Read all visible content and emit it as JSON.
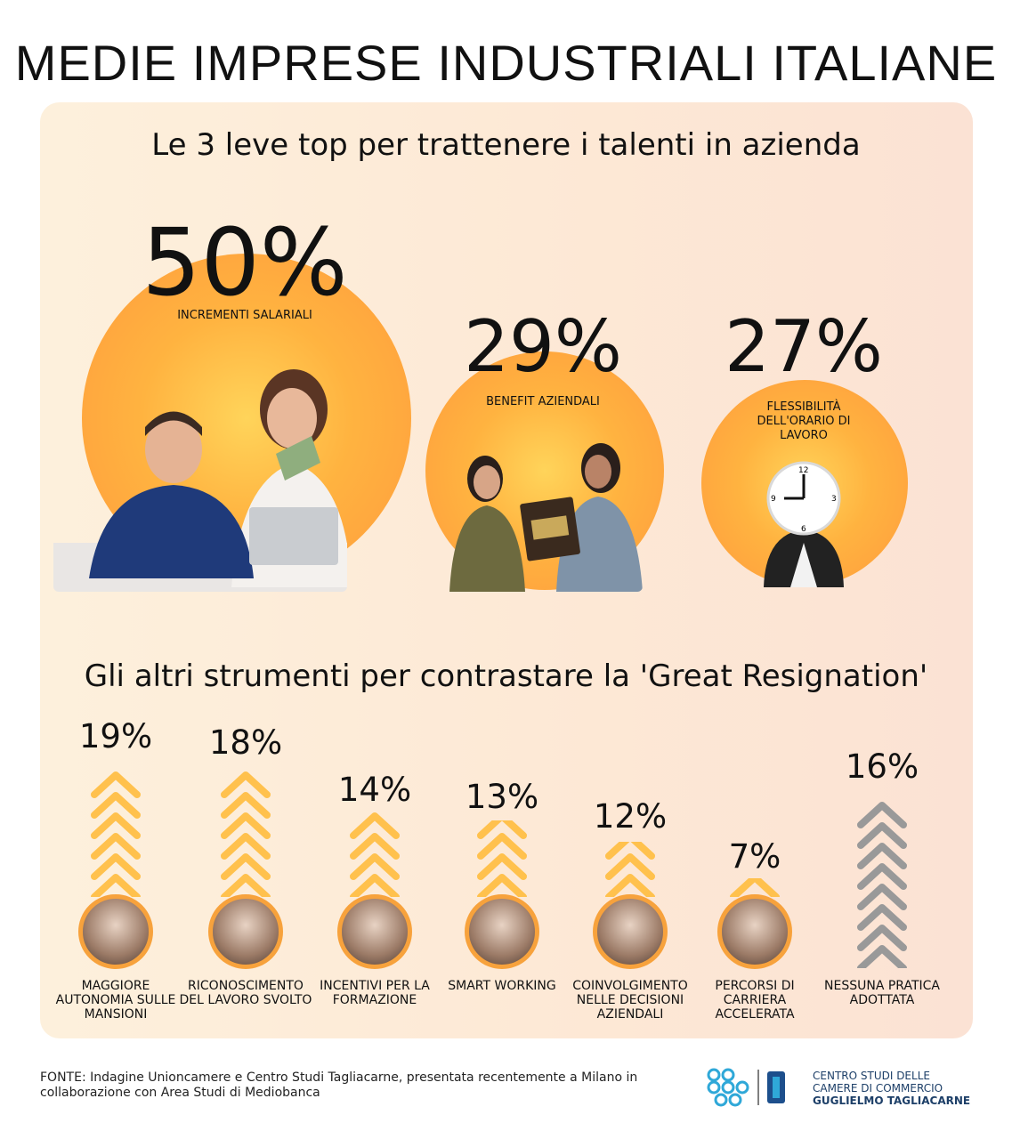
{
  "title": "MEDIE IMPRESE INDUSTRIALI ITALIANE",
  "section1_title": "Le 3 leve top per trattenere i talenti in azienda",
  "section2_title": "Gli altri strumenti per contrastare la 'Great Resignation'",
  "top": [
    {
      "pct": "50%",
      "label": "INCREMENTI SALARIALI"
    },
    {
      "pct": "29%",
      "label": "BENEFIT AZIENDALI"
    },
    {
      "pct": "27%",
      "label": "FLESSIBILITÀ DELL'ORARIO DI LAVORO"
    }
  ],
  "others": [
    {
      "pct": "19%",
      "label": "MAGGIORE AUTONOMIA SULLE MANSIONI"
    },
    {
      "pct": "18%",
      "label": "RICONOSCIMENTO DEL LAVORO SVOLTO"
    },
    {
      "pct": "14%",
      "label": "INCENTIVI PER LA FORMAZIONE"
    },
    {
      "pct": "13%",
      "label": "SMART WORKING"
    },
    {
      "pct": "12%",
      "label": "COINVOLGIMENTO NELLE DECISIONI AZIENDALI"
    },
    {
      "pct": "7%",
      "label": "PERCORSI DI CARRIERA ACCELERATA"
    },
    {
      "pct": "16%",
      "label": "NESSUNA PRATICA ADOTTATA"
    }
  ],
  "chart_data": {
    "type": "bar",
    "categories": [
      "INCREMENTI SALARIALI",
      "BENEFIT AZIENDALI",
      "FLESSIBILITÀ DELL'ORARIO DI LAVORO",
      "MAGGIORE AUTONOMIA SULLE MANSIONI",
      "RICONOSCIMENTO DEL LAVORO SVOLTO",
      "INCENTIVI PER LA FORMAZIONE",
      "SMART WORKING",
      "COINVOLGIMENTO NELLE DECISIONI AZIENDALI",
      "PERCORSI DI CARRIERA ACCELERATA",
      "NESSUNA PRATICA ADOTTATA"
    ],
    "values": [
      50,
      29,
      27,
      19,
      18,
      14,
      13,
      12,
      7,
      16
    ],
    "unit": "%"
  },
  "footer": {
    "line1": "FONTE: Indagine Unioncamere e Centro Studi Tagliacarne, presentata recentemente a Milano in",
    "line2": "collaborazione con Area Studi di Mediobanca"
  },
  "logo": {
    "line1": "CENTRO STUDI DELLE",
    "line2": "CAMERE DI COMMERCIO",
    "line3": "GUGLIELMO TAGLIACARNE"
  },
  "colors": {
    "accent": "#ffb340",
    "chevron": "#ffc14d",
    "chevron_none": "#999999",
    "ring": "#f7a23c"
  }
}
